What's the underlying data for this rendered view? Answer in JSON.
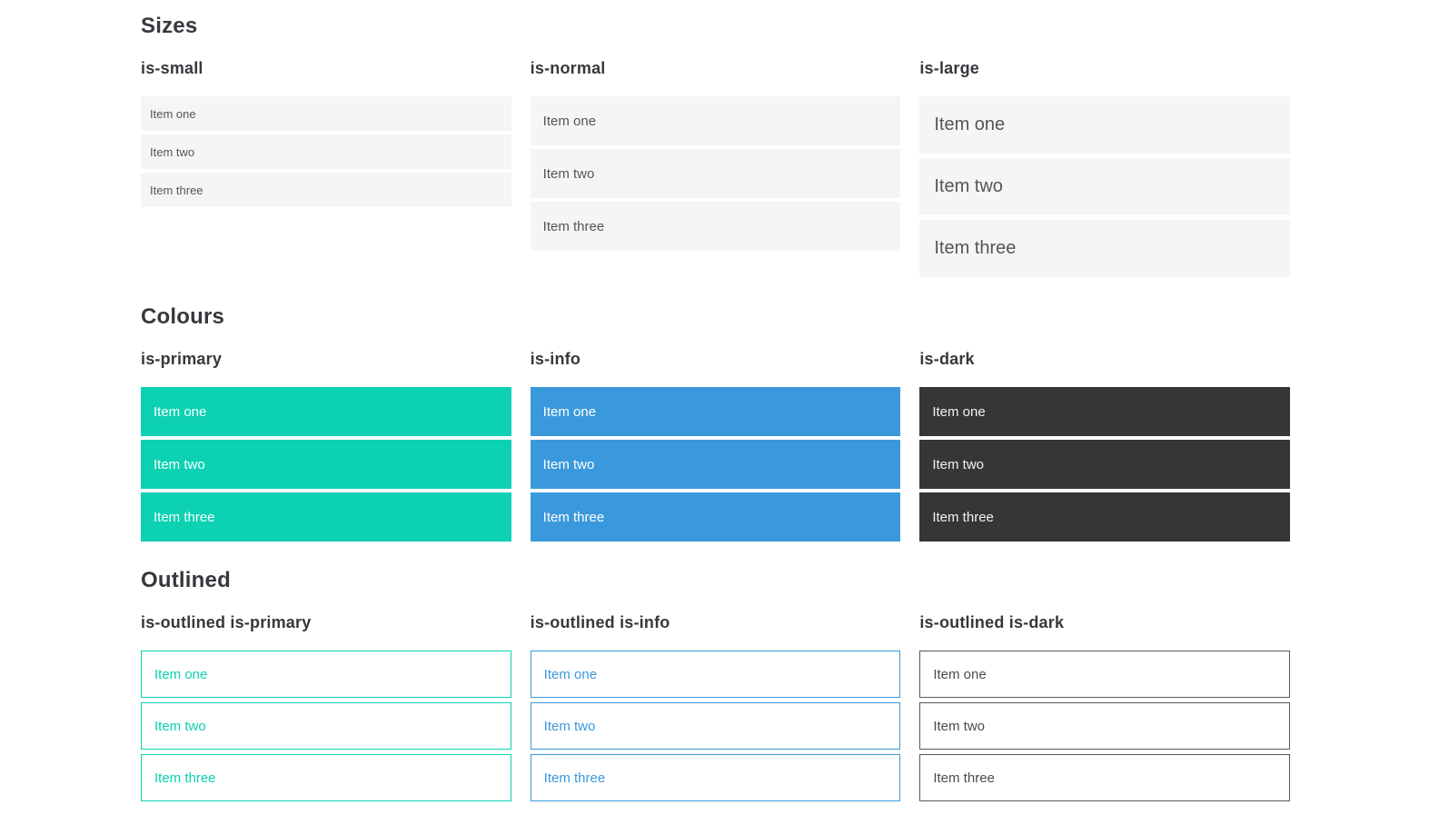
{
  "colors": {
    "primary": "#0cd1b2",
    "info": "#3a99dc",
    "dark": "#363636",
    "item-bg": "#f5f5f5",
    "item-text": "#54555a",
    "heading-text": "#37383d"
  },
  "page": {
    "sections": [
      {
        "title": "Sizes",
        "columns": [
          {
            "title": "is-small",
            "items": [
              "Item one",
              "Item two",
              "Item three"
            ]
          },
          {
            "title": "is-normal",
            "items": [
              "Item one",
              "Item two",
              "Item three"
            ]
          },
          {
            "title": "is-large",
            "items": [
              "Item one",
              "Item two",
              "Item three"
            ]
          }
        ]
      },
      {
        "title": "Colours",
        "columns": [
          {
            "title": "is-primary",
            "items": [
              "Item one",
              "Item two",
              "Item three"
            ]
          },
          {
            "title": "is-info",
            "items": [
              "Item one",
              "Item two",
              "Item three"
            ]
          },
          {
            "title": "is-dark",
            "items": [
              "Item one",
              "Item two",
              "Item three"
            ]
          }
        ]
      },
      {
        "title": "Outlined",
        "columns": [
          {
            "title": "is-outlined is-primary",
            "items": [
              "Item one",
              "Item two",
              "Item three"
            ]
          },
          {
            "title": "is-outlined is-info",
            "items": [
              "Item one",
              "Item two",
              "Item three"
            ]
          },
          {
            "title": "is-outlined is-dark",
            "items": [
              "Item one",
              "Item two",
              "Item three"
            ]
          }
        ]
      }
    ]
  }
}
